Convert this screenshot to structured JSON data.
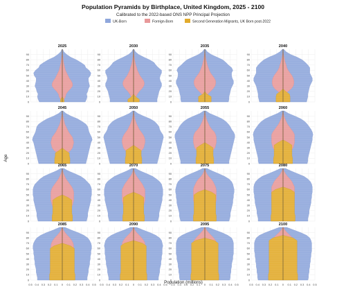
{
  "chart_data": {
    "type": "area",
    "chart_kind": "population-pyramid small multiples (4x4 grid, mirrored stacked areas)",
    "title": "Population Pyramids by Birthplace, United Kingdom, 2025 - 2100",
    "subtitle": "Calibrated to the 2022-based ONS NPP Principal Projection",
    "xlabel": "Population (millions)",
    "ylabel": "Age",
    "legend_position": "top-center",
    "grid": true,
    "xlim": [
      -0.5,
      0.5
    ],
    "ylim": [
      0,
      100
    ],
    "x_tick_labels": [
      "0.5",
      "0.4",
      "0.3",
      "0.2",
      "0.1",
      "0",
      "0.1",
      "0.2",
      "0.3",
      "0.4",
      "0.5"
    ],
    "x_ticks": [
      -0.5,
      -0.4,
      -0.3,
      -0.2,
      -0.1,
      0,
      0.1,
      0.2,
      0.3,
      0.4,
      0.5
    ],
    "y_tick_labels": [
      "0",
      "10",
      "20",
      "30",
      "40",
      "50",
      "60",
      "70",
      "80",
      "90"
    ],
    "y_ticks": [
      0,
      10,
      20,
      30,
      40,
      50,
      60,
      70,
      80,
      90
    ],
    "series": [
      {
        "name": "UK-Born",
        "color": "#8fa7dc"
      },
      {
        "name": "Foreign-Born",
        "color": "#e8999a"
      },
      {
        "name": "Second Generation Migrants, UK Born post-2022",
        "color": "#e2ab2c"
      }
    ],
    "ages": [
      0,
      5,
      10,
      15,
      20,
      25,
      30,
      35,
      40,
      45,
      50,
      55,
      60,
      65,
      70,
      75,
      80,
      85,
      90,
      95,
      100
    ],
    "panels": [
      {
        "year": "2025",
        "total": [
          0.36,
          0.38,
          0.39,
          0.38,
          0.4,
          0.41,
          0.43,
          0.42,
          0.41,
          0.41,
          0.44,
          0.45,
          0.42,
          0.37,
          0.35,
          0.29,
          0.22,
          0.13,
          0.07,
          0.025,
          0.005
        ],
        "foreign": [
          0.01,
          0.03,
          0.05,
          0.06,
          0.09,
          0.13,
          0.16,
          0.16,
          0.14,
          0.11,
          0.09,
          0.07,
          0.05,
          0.04,
          0.03,
          0.02,
          0.015,
          0.01,
          0.005,
          0.002,
          0
        ],
        "second": [
          0.03,
          0.025,
          0,
          0,
          0,
          0,
          0,
          0,
          0,
          0,
          0,
          0,
          0,
          0,
          0,
          0,
          0,
          0,
          0,
          0,
          0
        ]
      },
      {
        "year": "2030",
        "total": [
          0.37,
          0.37,
          0.38,
          0.39,
          0.4,
          0.42,
          0.44,
          0.44,
          0.42,
          0.41,
          0.42,
          0.44,
          0.44,
          0.39,
          0.35,
          0.32,
          0.25,
          0.16,
          0.08,
          0.03,
          0.006
        ],
        "foreign": [
          0.01,
          0.02,
          0.04,
          0.06,
          0.09,
          0.13,
          0.16,
          0.17,
          0.16,
          0.13,
          0.1,
          0.08,
          0.06,
          0.05,
          0.035,
          0.025,
          0.017,
          0.01,
          0.006,
          0.002,
          0
        ],
        "second": [
          0.09,
          0.09,
          0.03,
          0,
          0,
          0,
          0,
          0,
          0,
          0,
          0,
          0,
          0,
          0,
          0,
          0,
          0,
          0,
          0,
          0,
          0
        ]
      },
      {
        "year": "2035",
        "total": [
          0.37,
          0.38,
          0.38,
          0.39,
          0.4,
          0.41,
          0.43,
          0.45,
          0.45,
          0.43,
          0.42,
          0.42,
          0.44,
          0.42,
          0.37,
          0.33,
          0.28,
          0.19,
          0.1,
          0.04,
          0.008
        ],
        "foreign": [
          0.01,
          0.02,
          0.03,
          0.05,
          0.09,
          0.13,
          0.16,
          0.17,
          0.17,
          0.15,
          0.12,
          0.09,
          0.07,
          0.055,
          0.04,
          0.03,
          0.02,
          0.012,
          0.007,
          0.003,
          0
        ],
        "second": [
          0.1,
          0.1,
          0.1,
          0.03,
          0,
          0,
          0,
          0,
          0,
          0,
          0,
          0,
          0,
          0,
          0,
          0,
          0,
          0,
          0,
          0,
          0
        ]
      },
      {
        "year": "2040",
        "total": [
          0.37,
          0.38,
          0.39,
          0.39,
          0.4,
          0.41,
          0.42,
          0.44,
          0.46,
          0.46,
          0.44,
          0.42,
          0.42,
          0.42,
          0.39,
          0.35,
          0.3,
          0.22,
          0.12,
          0.05,
          0.01
        ],
        "foreign": [
          0.01,
          0.02,
          0.03,
          0.04,
          0.08,
          0.13,
          0.16,
          0.17,
          0.17,
          0.16,
          0.14,
          0.11,
          0.08,
          0.06,
          0.05,
          0.035,
          0.025,
          0.015,
          0.008,
          0.003,
          0
        ],
        "second": [
          0.11,
          0.11,
          0.11,
          0.1,
          0.04,
          0,
          0,
          0,
          0,
          0,
          0,
          0,
          0,
          0,
          0,
          0,
          0,
          0,
          0,
          0,
          0
        ]
      },
      {
        "year": "2045",
        "total": [
          0.37,
          0.38,
          0.39,
          0.4,
          0.41,
          0.42,
          0.43,
          0.44,
          0.45,
          0.47,
          0.46,
          0.44,
          0.42,
          0.41,
          0.4,
          0.37,
          0.31,
          0.24,
          0.14,
          0.06,
          0.012
        ],
        "foreign": [
          0.01,
          0.02,
          0.03,
          0.04,
          0.08,
          0.13,
          0.16,
          0.17,
          0.18,
          0.17,
          0.16,
          0.13,
          0.1,
          0.08,
          0.06,
          0.04,
          0.03,
          0.02,
          0.01,
          0.004,
          0
        ],
        "second": [
          0.12,
          0.12,
          0.12,
          0.11,
          0.11,
          0.05,
          0,
          0,
          0,
          0,
          0,
          0,
          0,
          0,
          0,
          0,
          0,
          0,
          0,
          0,
          0
        ]
      },
      {
        "year": "2050",
        "total": [
          0.37,
          0.38,
          0.39,
          0.4,
          0.41,
          0.42,
          0.43,
          0.44,
          0.45,
          0.46,
          0.47,
          0.46,
          0.43,
          0.41,
          0.4,
          0.37,
          0.33,
          0.26,
          0.16,
          0.07,
          0.015
        ],
        "foreign": [
          0.01,
          0.02,
          0.03,
          0.04,
          0.08,
          0.13,
          0.16,
          0.17,
          0.18,
          0.18,
          0.17,
          0.15,
          0.12,
          0.09,
          0.07,
          0.05,
          0.035,
          0.02,
          0.012,
          0.005,
          0
        ],
        "second": [
          0.13,
          0.13,
          0.13,
          0.12,
          0.12,
          0.12,
          0.06,
          0,
          0,
          0,
          0,
          0,
          0,
          0,
          0,
          0,
          0,
          0,
          0,
          0,
          0
        ]
      },
      {
        "year": "2055",
        "total": [
          0.38,
          0.38,
          0.39,
          0.4,
          0.41,
          0.42,
          0.43,
          0.44,
          0.45,
          0.46,
          0.47,
          0.47,
          0.45,
          0.42,
          0.4,
          0.37,
          0.33,
          0.27,
          0.18,
          0.08,
          0.018
        ],
        "foreign": [
          0.01,
          0.02,
          0.03,
          0.04,
          0.08,
          0.13,
          0.16,
          0.17,
          0.18,
          0.18,
          0.18,
          0.17,
          0.15,
          0.11,
          0.08,
          0.06,
          0.04,
          0.025,
          0.014,
          0.006,
          0.001
        ],
        "second": [
          0.14,
          0.14,
          0.14,
          0.13,
          0.13,
          0.13,
          0.13,
          0.07,
          0,
          0,
          0,
          0,
          0,
          0,
          0,
          0,
          0,
          0,
          0,
          0,
          0
        ]
      },
      {
        "year": "2060",
        "total": [
          0.38,
          0.39,
          0.39,
          0.4,
          0.41,
          0.42,
          0.43,
          0.44,
          0.45,
          0.46,
          0.46,
          0.47,
          0.46,
          0.44,
          0.41,
          0.38,
          0.34,
          0.28,
          0.19,
          0.09,
          0.02
        ],
        "foreign": [
          0.01,
          0.02,
          0.03,
          0.04,
          0.08,
          0.13,
          0.16,
          0.17,
          0.18,
          0.18,
          0.18,
          0.18,
          0.16,
          0.13,
          0.1,
          0.07,
          0.05,
          0.03,
          0.016,
          0.007,
          0.001
        ],
        "second": [
          0.15,
          0.15,
          0.15,
          0.14,
          0.14,
          0.14,
          0.14,
          0.14,
          0.08,
          0,
          0,
          0,
          0,
          0,
          0,
          0,
          0,
          0,
          0,
          0,
          0
        ]
      },
      {
        "year": "2065",
        "total": [
          0.38,
          0.39,
          0.4,
          0.4,
          0.41,
          0.42,
          0.43,
          0.44,
          0.45,
          0.45,
          0.46,
          0.46,
          0.46,
          0.45,
          0.43,
          0.39,
          0.35,
          0.29,
          0.2,
          0.1,
          0.025
        ],
        "foreign": [
          0.01,
          0.02,
          0.03,
          0.04,
          0.08,
          0.13,
          0.16,
          0.17,
          0.18,
          0.18,
          0.18,
          0.18,
          0.17,
          0.15,
          0.12,
          0.09,
          0.06,
          0.04,
          0.02,
          0.008,
          0.001
        ],
        "second": [
          0.16,
          0.16,
          0.16,
          0.15,
          0.15,
          0.15,
          0.15,
          0.15,
          0.15,
          0.09,
          0,
          0,
          0,
          0,
          0,
          0,
          0,
          0,
          0,
          0,
          0
        ]
      },
      {
        "year": "2070",
        "total": [
          0.38,
          0.39,
          0.4,
          0.4,
          0.41,
          0.42,
          0.43,
          0.44,
          0.45,
          0.45,
          0.46,
          0.46,
          0.46,
          0.45,
          0.44,
          0.41,
          0.36,
          0.3,
          0.21,
          0.11,
          0.03
        ],
        "foreign": [
          0.01,
          0.02,
          0.03,
          0.04,
          0.08,
          0.13,
          0.16,
          0.17,
          0.18,
          0.18,
          0.18,
          0.18,
          0.18,
          0.16,
          0.14,
          0.11,
          0.08,
          0.05,
          0.025,
          0.01,
          0.002
        ],
        "second": [
          0.17,
          0.17,
          0.17,
          0.16,
          0.16,
          0.16,
          0.16,
          0.16,
          0.16,
          0.16,
          0.1,
          0,
          0,
          0,
          0,
          0,
          0,
          0,
          0,
          0,
          0
        ]
      },
      {
        "year": "2075",
        "total": [
          0.38,
          0.39,
          0.4,
          0.4,
          0.41,
          0.42,
          0.43,
          0.44,
          0.44,
          0.45,
          0.45,
          0.46,
          0.46,
          0.45,
          0.44,
          0.42,
          0.38,
          0.31,
          0.22,
          0.12,
          0.035
        ],
        "foreign": [
          0.01,
          0.02,
          0.03,
          0.04,
          0.08,
          0.13,
          0.16,
          0.17,
          0.18,
          0.18,
          0.18,
          0.18,
          0.18,
          0.17,
          0.15,
          0.13,
          0.1,
          0.06,
          0.03,
          0.012,
          0.002
        ],
        "second": [
          0.18,
          0.18,
          0.18,
          0.17,
          0.17,
          0.17,
          0.17,
          0.17,
          0.17,
          0.17,
          0.17,
          0.11,
          0,
          0,
          0,
          0,
          0,
          0,
          0,
          0,
          0
        ]
      },
      {
        "year": "2080",
        "total": [
          0.39,
          0.39,
          0.4,
          0.41,
          0.41,
          0.42,
          0.43,
          0.44,
          0.44,
          0.45,
          0.45,
          0.46,
          0.46,
          0.46,
          0.45,
          0.43,
          0.39,
          0.33,
          0.23,
          0.13,
          0.04
        ],
        "foreign": [
          0.01,
          0.02,
          0.03,
          0.04,
          0.08,
          0.13,
          0.16,
          0.17,
          0.18,
          0.18,
          0.18,
          0.18,
          0.18,
          0.18,
          0.16,
          0.14,
          0.11,
          0.07,
          0.04,
          0.015,
          0.003
        ],
        "second": [
          0.19,
          0.19,
          0.19,
          0.18,
          0.18,
          0.18,
          0.18,
          0.18,
          0.18,
          0.18,
          0.18,
          0.18,
          0.12,
          0,
          0,
          0,
          0,
          0,
          0,
          0,
          0
        ]
      },
      {
        "year": "2085",
        "total": [
          0.39,
          0.39,
          0.4,
          0.41,
          0.41,
          0.42,
          0.43,
          0.43,
          0.44,
          0.44,
          0.45,
          0.45,
          0.46,
          0.46,
          0.45,
          0.43,
          0.4,
          0.34,
          0.25,
          0.14,
          0.045
        ],
        "foreign": [
          0.01,
          0.02,
          0.03,
          0.04,
          0.08,
          0.13,
          0.16,
          0.17,
          0.18,
          0.18,
          0.18,
          0.18,
          0.18,
          0.18,
          0.17,
          0.15,
          0.12,
          0.08,
          0.045,
          0.018,
          0.003
        ],
        "second": [
          0.2,
          0.2,
          0.2,
          0.19,
          0.19,
          0.19,
          0.19,
          0.19,
          0.19,
          0.19,
          0.19,
          0.19,
          0.19,
          0.13,
          0,
          0,
          0,
          0,
          0,
          0,
          0
        ]
      },
      {
        "year": "2090",
        "total": [
          0.39,
          0.39,
          0.4,
          0.41,
          0.41,
          0.42,
          0.43,
          0.43,
          0.44,
          0.44,
          0.45,
          0.45,
          0.45,
          0.46,
          0.45,
          0.44,
          0.41,
          0.35,
          0.26,
          0.15,
          0.05
        ],
        "foreign": [
          0.01,
          0.02,
          0.03,
          0.04,
          0.08,
          0.13,
          0.16,
          0.17,
          0.18,
          0.18,
          0.18,
          0.18,
          0.18,
          0.18,
          0.18,
          0.16,
          0.13,
          0.09,
          0.05,
          0.02,
          0.004
        ],
        "second": [
          0.21,
          0.21,
          0.21,
          0.2,
          0.2,
          0.2,
          0.2,
          0.2,
          0.2,
          0.2,
          0.2,
          0.2,
          0.2,
          0.2,
          0.14,
          0,
          0,
          0,
          0,
          0,
          0
        ]
      },
      {
        "year": "2095",
        "total": [
          0.39,
          0.4,
          0.4,
          0.41,
          0.41,
          0.42,
          0.42,
          0.43,
          0.44,
          0.44,
          0.45,
          0.45,
          0.45,
          0.45,
          0.45,
          0.44,
          0.42,
          0.36,
          0.27,
          0.16,
          0.055
        ],
        "foreign": [
          0.01,
          0.02,
          0.03,
          0.04,
          0.08,
          0.13,
          0.16,
          0.17,
          0.18,
          0.18,
          0.18,
          0.18,
          0.18,
          0.18,
          0.18,
          0.17,
          0.14,
          0.1,
          0.06,
          0.025,
          0.005
        ],
        "second": [
          0.22,
          0.22,
          0.22,
          0.21,
          0.21,
          0.21,
          0.21,
          0.21,
          0.21,
          0.21,
          0.21,
          0.21,
          0.21,
          0.21,
          0.21,
          0.15,
          0,
          0,
          0,
          0,
          0
        ]
      },
      {
        "year": "2100",
        "total": [
          0.39,
          0.4,
          0.4,
          0.41,
          0.41,
          0.42,
          0.42,
          0.43,
          0.43,
          0.44,
          0.44,
          0.45,
          0.45,
          0.45,
          0.45,
          0.44,
          0.42,
          0.37,
          0.28,
          0.17,
          0.06
        ],
        "foreign": [
          0.01,
          0.02,
          0.03,
          0.04,
          0.08,
          0.13,
          0.16,
          0.17,
          0.18,
          0.18,
          0.18,
          0.18,
          0.18,
          0.18,
          0.18,
          0.18,
          0.15,
          0.11,
          0.065,
          0.028,
          0.006
        ],
        "second": [
          0.23,
          0.23,
          0.23,
          0.22,
          0.22,
          0.22,
          0.22,
          0.22,
          0.22,
          0.22,
          0.22,
          0.22,
          0.22,
          0.22,
          0.22,
          0.22,
          0.16,
          0,
          0,
          0,
          0
        ]
      }
    ]
  }
}
